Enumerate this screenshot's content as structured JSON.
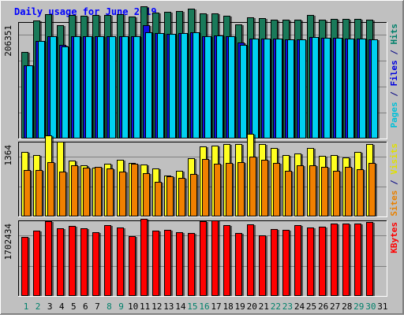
{
  "chart_data": {
    "type": "bar",
    "title": "Daily usage for June 2019",
    "days": [
      "1",
      "2",
      "3",
      "4",
      "5",
      "6",
      "7",
      "8",
      "9",
      "10",
      "11",
      "12",
      "13",
      "14",
      "15",
      "16",
      "17",
      "18",
      "19",
      "20",
      "21",
      "22",
      "23",
      "24",
      "25",
      "26",
      "27",
      "28",
      "29",
      "30",
      "31"
    ],
    "weekend_days": [
      "1",
      "2",
      "8",
      "9",
      "15",
      "16",
      "22",
      "23",
      "29",
      "30"
    ],
    "panels": [
      {
        "name": "requests",
        "ymax_label": "206351",
        "ymax": 206351,
        "right_label": [
          {
            "text": "Pages",
            "color": "#00c0d8"
          },
          {
            "text": " / ",
            "color": "#000080"
          },
          {
            "text": "Files",
            "color": "#0000e0"
          },
          {
            "text": " / ",
            "color": "#000080"
          },
          {
            "text": "Hits",
            "color": "#00806a"
          }
        ],
        "series": [
          {
            "name": "Hits",
            "color": "#1a7a5a",
            "values": [
              158000,
              215000,
              227000,
              206000,
              225000,
              224000,
              225000,
              225000,
              226000,
              222000,
              241000,
              229000,
              230000,
              232000,
              237000,
              228000,
              228000,
              223000,
              208000,
              221000,
              219000,
              217000,
              216000,
              216000,
              225000,
              217000,
              218000,
              218000,
              218000,
              216000,
              null
            ]
          },
          {
            "name": "Files",
            "color": "#1010e0",
            "values": [
              133000,
              178000,
              187000,
              171000,
              186000,
              186000,
              186000,
              187000,
              186000,
              186000,
              207000,
              192000,
              191000,
              192000,
              193000,
              187000,
              188000,
              187000,
              175000,
              182000,
              182000,
              182000,
              181000,
              181000,
              185000,
              183000,
              183000,
              182000,
              182000,
              180000,
              null
            ]
          },
          {
            "name": "Pages",
            "color": "#00d0f0",
            "values": [
              133000,
              178000,
              187000,
              167000,
              186000,
              186000,
              186000,
              186000,
              186000,
              186000,
              193000,
              192000,
              191000,
              192000,
              193000,
              187000,
              188000,
              187000,
              171000,
              182000,
              182000,
              182000,
              181000,
              181000,
              185000,
              183000,
              183000,
              182000,
              182000,
              180000,
              null
            ]
          }
        ]
      },
      {
        "name": "visitors",
        "ymax_label": "1364",
        "ymax": 1364,
        "right_label": [
          {
            "text": "Sites",
            "color": "#e88000"
          },
          {
            "text": " / ",
            "color": "#000080"
          },
          {
            "text": "Visits",
            "color": "#e0e000"
          }
        ],
        "series": [
          {
            "name": "Visits",
            "color": "#ffff20",
            "values": [
              1227,
              1175,
              1545,
              1428,
              1057,
              968,
              933,
              1004,
              1085,
              1018,
              990,
              911,
              779,
              870,
              1104,
              1336,
              1353,
              1386,
              1385,
              1578,
              1378,
              1299,
              1169,
              1197,
              1304,
              1156,
              1175,
              1120,
              1225,
              1375,
              null
            ]
          },
          {
            "name": "Sites",
            "color": "#f08000",
            "values": [
              885,
              880,
              1032,
              856,
              975,
              934,
              941,
              915,
              861,
              1010,
              824,
              655,
              765,
              734,
              802,
              1089,
              1002,
              1016,
              1036,
              1139,
              1082,
              1022,
              875,
              977,
              978,
              941,
              867,
              945,
              904,
              1019,
              null
            ]
          }
        ]
      },
      {
        "name": "kbytes",
        "ymax_label": "1702434",
        "ymax": 1702434,
        "right_label": [
          {
            "text": "KBytes",
            "color": "#ff0000"
          }
        ],
        "series": [
          {
            "name": "KBytes",
            "color": "#ff0000",
            "values": [
              1386000,
              1540000,
              1760000,
              1588000,
              1645000,
              1588000,
              1494000,
              1657000,
              1601000,
              1411000,
              1815000,
              1538000,
              1550000,
              1504000,
              1475000,
              1765000,
              1776000,
              1660000,
              1486000,
              1686000,
              1429000,
              1565000,
              1550000,
              1657000,
              1611000,
              1621000,
              1696000,
              1696000,
              1696000,
              1740000,
              null
            ]
          }
        ]
      }
    ]
  }
}
